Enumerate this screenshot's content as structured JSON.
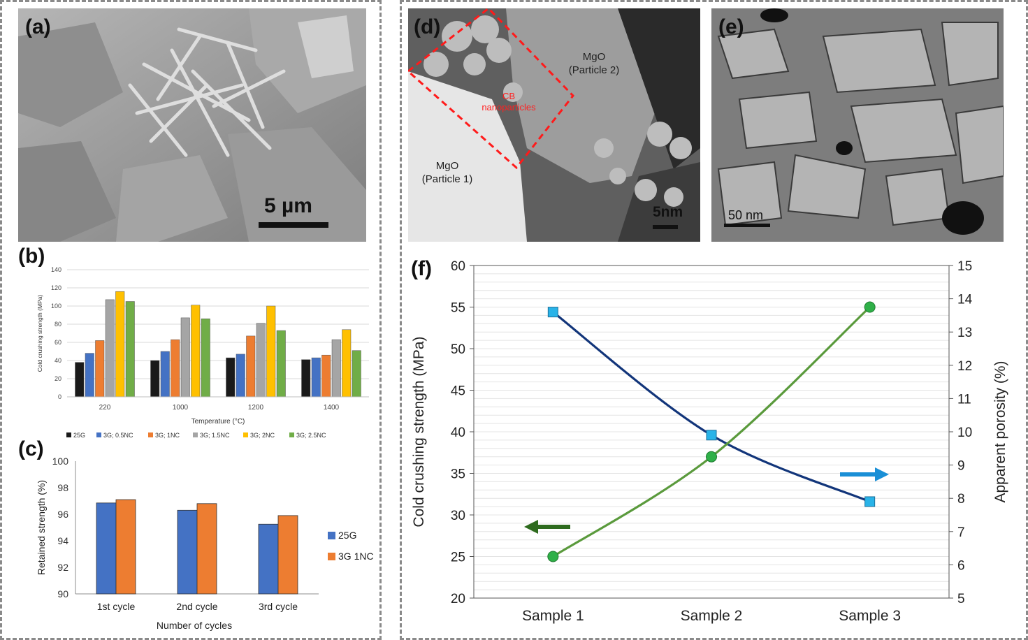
{
  "panels": {
    "a": {
      "letter": "(a)",
      "scale_label": "5 µm"
    },
    "b": {
      "letter": "(b)"
    },
    "c": {
      "letter": "(c)"
    },
    "d": {
      "letter": "(d)",
      "label_p1": "MgO",
      "label_p1b": "(Particle 1)",
      "label_p2": "MgO",
      "label_p2b": "(Particle 2)",
      "cb_label_1": "CB",
      "cb_label_2": "nanoparticles",
      "scale_label": "5nm"
    },
    "e": {
      "letter": "(e)",
      "scale_label": "50 nm"
    },
    "f": {
      "letter": "(f)"
    }
  },
  "colors": {
    "frame": "#8a8a8a",
    "b_series": [
      "#1a1a1a",
      "#4472c4",
      "#ed7d31",
      "#a5a5a5",
      "#ffc000",
      "#70ad47"
    ],
    "c_series": [
      "#4472c4",
      "#ed7d31"
    ],
    "f_strength": "#5a9a3c",
    "f_porosity": "#12357a",
    "f_marker_circle": "#2fb048",
    "f_marker_square": "#29b3e8",
    "f_arrow_left": "#2e6b1e",
    "f_arrow_right": "#1a8fd6"
  },
  "chart_data": [
    {
      "id": "b",
      "type": "bar",
      "xlabel": "Temperature (°C)",
      "ylabel": "Cold crushing strength (MPa)",
      "categories": [
        "220",
        "1000",
        "1200",
        "1400"
      ],
      "ylim": [
        0,
        140
      ],
      "yticks": [
        "0",
        "20",
        "40",
        "60",
        "80",
        "100",
        "120",
        "140"
      ],
      "grid": true,
      "legend_position": "bottom",
      "series": [
        {
          "name": "25G",
          "values": [
            38,
            40,
            43,
            41
          ]
        },
        {
          "name": "3G; 0.5NC",
          "values": [
            48,
            50,
            47,
            43
          ]
        },
        {
          "name": "3G; 1NC",
          "values": [
            62,
            63,
            67,
            46
          ]
        },
        {
          "name": "3G; 1.5NC",
          "values": [
            107,
            87,
            81,
            63
          ]
        },
        {
          "name": "3G; 2NC",
          "values": [
            116,
            101,
            100,
            74
          ]
        },
        {
          "name": "3G; 2.5NC",
          "values": [
            105,
            86,
            73,
            51
          ]
        }
      ]
    },
    {
      "id": "c",
      "type": "bar",
      "xlabel": "Number of cycles",
      "ylabel": "Retained strength (%)",
      "categories": [
        "1st cycle",
        "2nd cycle",
        "3rd cycle"
      ],
      "ylim": [
        90,
        100
      ],
      "yticks": [
        "90",
        "92",
        "94",
        "96",
        "98",
        "100"
      ],
      "grid": false,
      "legend_position": "right",
      "series": [
        {
          "name": "25G",
          "values": [
            96.85,
            96.3,
            95.25
          ]
        },
        {
          "name": "3G 1NC",
          "values": [
            97.1,
            96.8,
            95.9
          ]
        }
      ]
    },
    {
      "id": "f",
      "type": "line",
      "categories": [
        "Sample 1",
        "Sample 2",
        "Sample 3"
      ],
      "ylabel": "Cold crushing strength (MPa)",
      "y2label": "Apparent porosity (%)",
      "ylim": [
        20,
        60
      ],
      "y2lim": [
        5,
        15
      ],
      "yticks": [
        "20",
        "25",
        "30",
        "35",
        "40",
        "45",
        "50",
        "55",
        "60"
      ],
      "y2ticks": [
        "5",
        "6",
        "7",
        "8",
        "9",
        "10",
        "11",
        "12",
        "13",
        "14",
        "15"
      ],
      "grid": true,
      "series": [
        {
          "axis": "left",
          "marker": "circle",
          "values": [
            25,
            37,
            55
          ]
        },
        {
          "axis": "right",
          "marker": "square",
          "values": [
            13.6,
            9.9,
            7.9
          ]
        }
      ]
    }
  ]
}
